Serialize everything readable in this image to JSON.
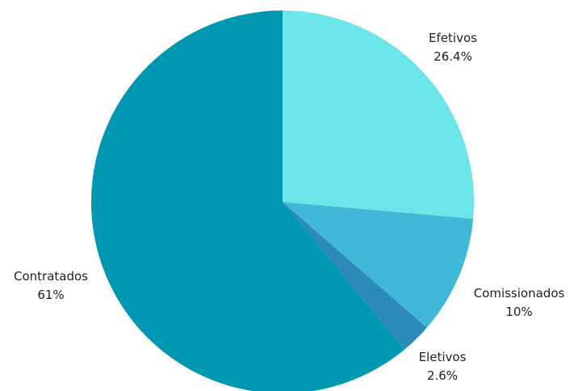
{
  "chart_data": {
    "type": "pie",
    "categories": [
      "Efetivos",
      "Comissionados",
      "Eletivos",
      "Contratados"
    ],
    "values": [
      26.4,
      10,
      2.6,
      61
    ],
    "value_labels": [
      "26.4%",
      "10%",
      "2.6%",
      "61%"
    ],
    "colors": [
      "#6ce5e8",
      "#41b8d5",
      "#2d8bba",
      "#0097b2"
    ],
    "start_angle": "12 o'clock",
    "direction": "clockwise",
    "legend": "none",
    "labels_position": "outside"
  }
}
